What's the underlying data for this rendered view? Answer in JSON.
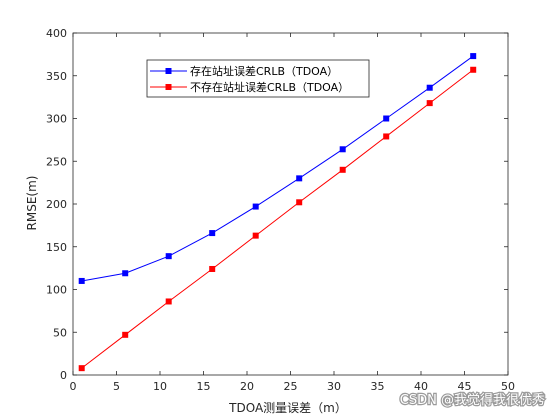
{
  "chart_data": {
    "type": "line",
    "title": "",
    "xlabel": "TDOA测量误差（m）",
    "ylabel": "RMSE(m)",
    "xlim": [
      0,
      50
    ],
    "ylim": [
      0,
      400
    ],
    "xticks": [
      0,
      5,
      10,
      15,
      20,
      25,
      30,
      35,
      40,
      45,
      50
    ],
    "yticks": [
      0,
      50,
      100,
      150,
      200,
      250,
      300,
      350,
      400
    ],
    "grid": false,
    "legend_position": "top-left",
    "x": [
      1,
      6,
      11,
      16,
      21,
      26,
      31,
      36,
      41,
      46
    ],
    "series": [
      {
        "name": "存在站址误差CRLB（TDOA）",
        "color": "#0000ff",
        "marker": "square",
        "values": [
          110,
          119,
          139,
          166,
          197,
          230,
          264,
          300,
          336,
          373
        ]
      },
      {
        "name": "不存在站址误差CRLB（TDOA）",
        "color": "#ff0000",
        "marker": "square",
        "values": [
          8,
          47,
          86,
          124,
          163,
          202,
          240,
          279,
          318,
          357
        ]
      }
    ]
  },
  "watermark": "CSDN @我觉得我很优秀"
}
